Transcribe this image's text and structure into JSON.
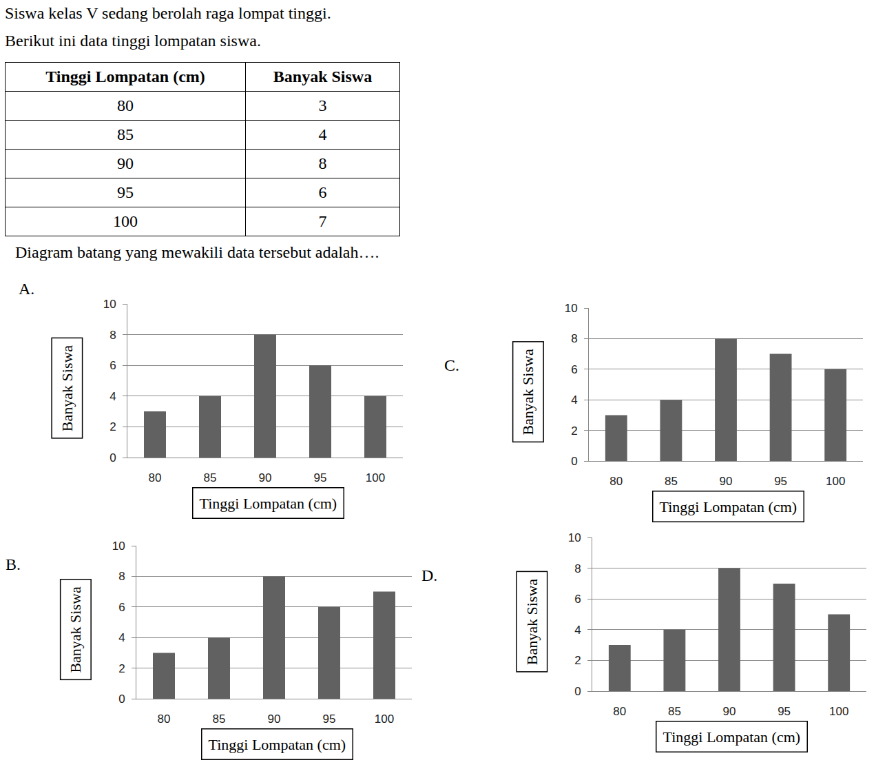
{
  "document": {
    "intro": [
      "Siswa kelas V sedang berolah raga lompat tinggi.",
      "Berikut ini data tinggi lompatan siswa."
    ],
    "table": {
      "header": [
        "Tinggi Lompatan (cm)",
        "Banyak Siswa"
      ],
      "rows": [
        [
          80,
          3
        ],
        [
          85,
          4
        ],
        [
          90,
          8
        ],
        [
          95,
          6
        ],
        [
          100,
          7
        ]
      ]
    },
    "question": "Diagram batang yang mewakili data tersebut adalah….",
    "option_letters": [
      "A.",
      "B.",
      "C.",
      "D."
    ]
  },
  "chart_data": [
    {
      "type": "bar",
      "categories": [
        "80",
        "85",
        "90",
        "95",
        "100"
      ],
      "values": [
        3,
        4,
        8,
        6,
        4
      ],
      "color": "#616161",
      "ylim": [
        0,
        10
      ],
      "yticks": [
        0,
        2,
        4,
        6,
        8,
        10
      ],
      "grid": true,
      "xlabel": "Tinggi Lompatan (cm)",
      "ylabel": "Banyak Siswa"
    },
    {
      "type": "bar",
      "categories": [
        "80",
        "85",
        "90",
        "95",
        "100"
      ],
      "values": [
        3,
        4,
        8,
        6,
        7
      ],
      "color": "#616161",
      "ylim": [
        0,
        10
      ],
      "yticks": [
        0,
        2,
        4,
        6,
        8,
        10
      ],
      "grid": true,
      "xlabel": "Tinggi Lompatan (cm)",
      "ylabel": "Banyak Siswa"
    },
    {
      "type": "bar",
      "categories": [
        "80",
        "85",
        "90",
        "95",
        "100"
      ],
      "values": [
        3,
        4,
        8,
        7,
        6
      ],
      "color": "#616161",
      "ylim": [
        0,
        10
      ],
      "yticks": [
        0,
        2,
        4,
        6,
        8,
        10
      ],
      "grid": true,
      "xlabel": "Tinggi Lompatan (cm)",
      "ylabel": "Banyak Siswa"
    },
    {
      "type": "bar",
      "categories": [
        "80",
        "85",
        "90",
        "95",
        "100"
      ],
      "values": [
        3,
        4,
        8,
        7,
        5
      ],
      "color": "#616161",
      "ylim": [
        0,
        10
      ],
      "yticks": [
        0,
        2,
        4,
        6,
        8,
        10
      ],
      "grid": true,
      "xlabel": "Tinggi Lompatan (cm)",
      "ylabel": "Banyak Siswa"
    }
  ]
}
